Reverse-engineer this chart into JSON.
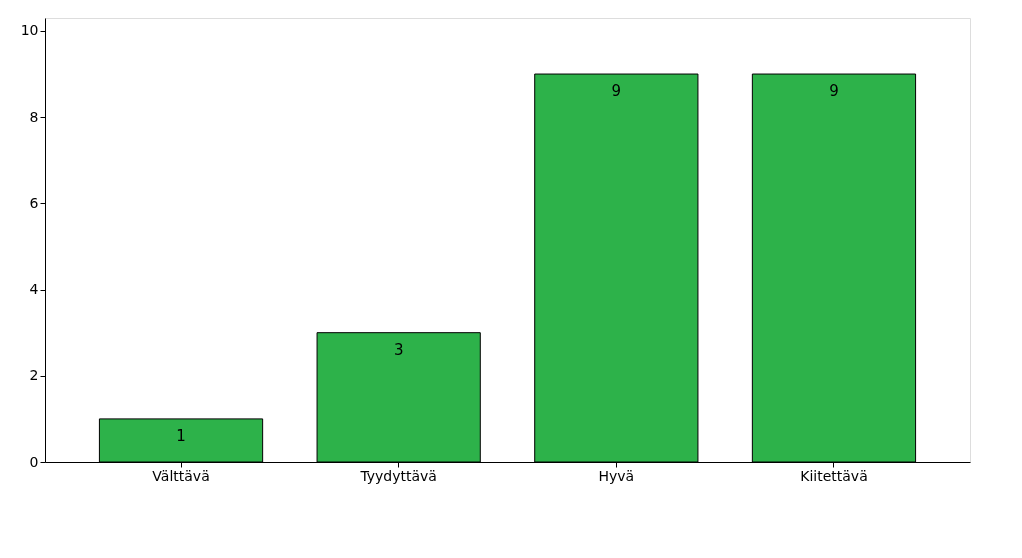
{
  "chart_data": {
    "type": "bar",
    "categories": [
      "Välttävä",
      "Tyydyttävä",
      "Hyvä",
      "Kiitettävä"
    ],
    "values": [
      1,
      3,
      9,
      9
    ],
    "color": "#2db24a",
    "ylim": [
      0,
      10.3
    ],
    "yticks": [
      0,
      2,
      4,
      6,
      8,
      10
    ],
    "grid": false,
    "data_labels": true
  }
}
